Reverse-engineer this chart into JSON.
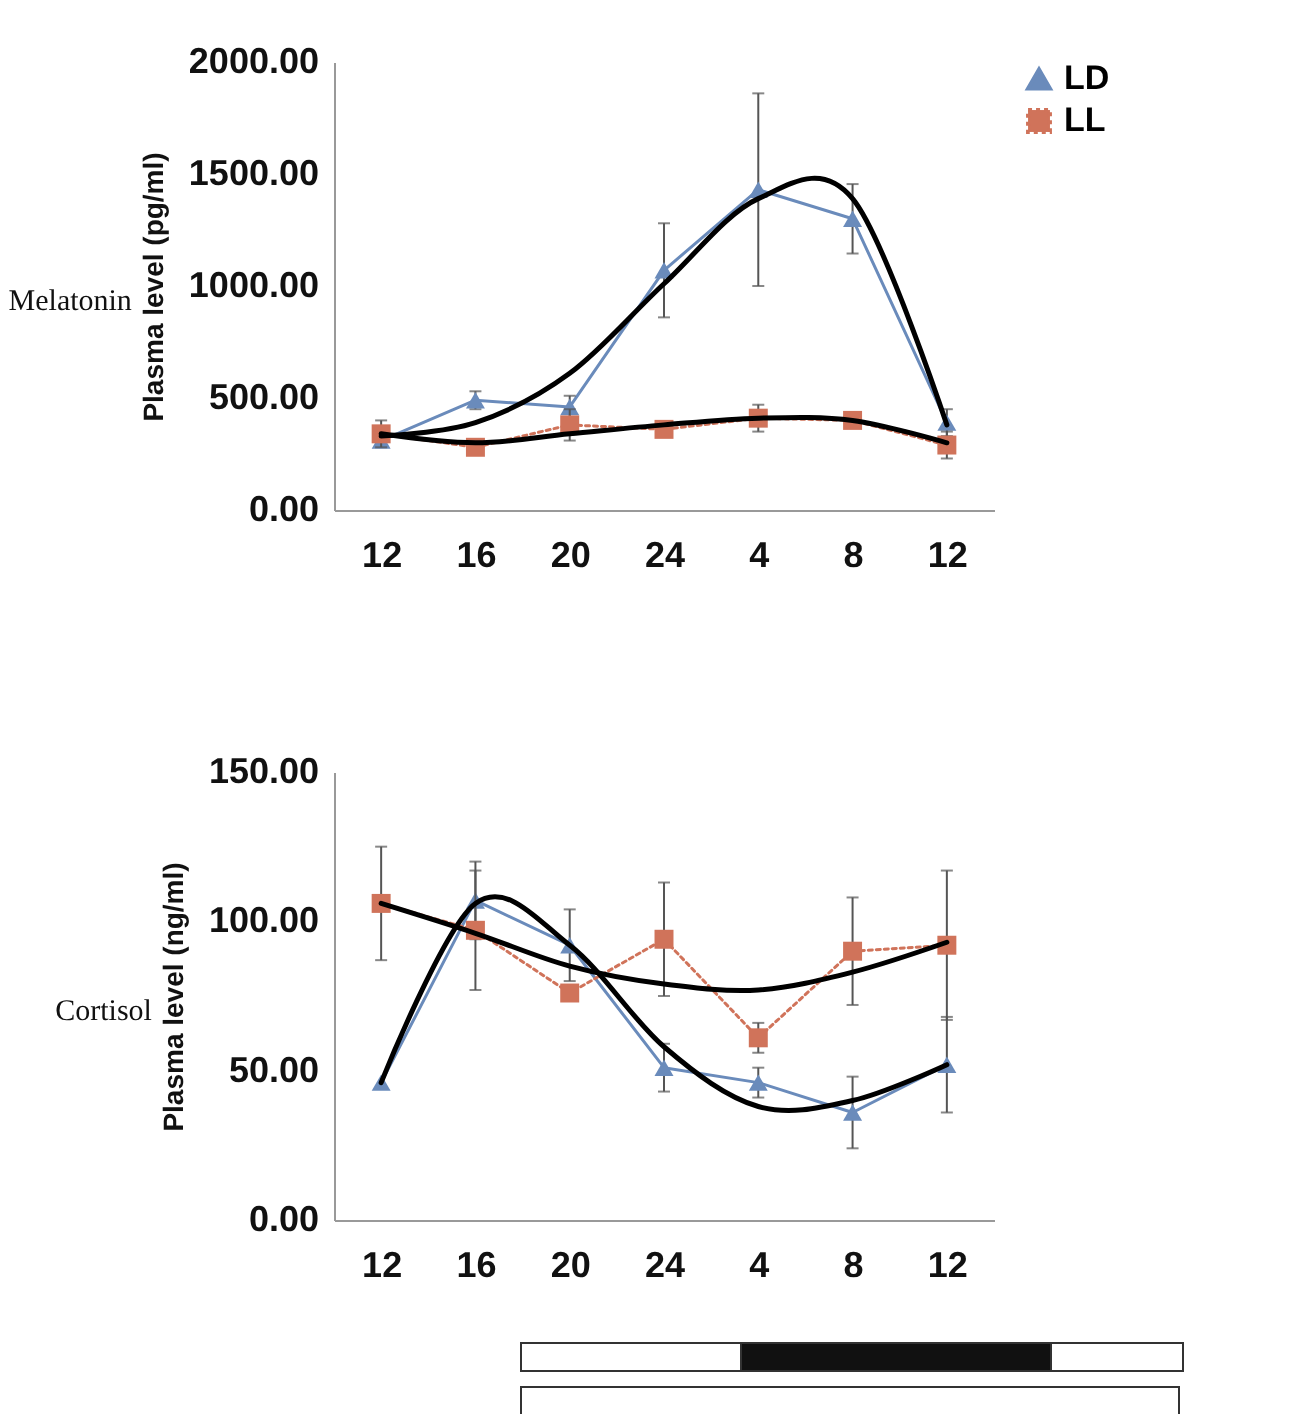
{
  "chart_data": [
    {
      "type": "line",
      "title": "Melatonin",
      "ylabel": "Plasma level  (pg/ml)",
      "categories": [
        "12",
        "16",
        "20",
        "24",
        "4",
        "8",
        "12"
      ],
      "ylim": [
        0,
        2000
      ],
      "yticks": [
        {
          "value": 0,
          "label": "0.00"
        },
        {
          "value": 500,
          "label": "500.00"
        },
        {
          "value": 1000,
          "label": "1000.00"
        },
        {
          "value": 1500,
          "label": "1500.00"
        },
        {
          "value": 2000,
          "label": "2000.00"
        }
      ],
      "grid": false,
      "legend": "top right",
      "series": [
        {
          "name": "LD",
          "color": "#6a8bbb",
          "marker": "triangle",
          "line_style": "solid",
          "values": [
            310,
            490,
            460,
            1070,
            1430,
            1300,
            390
          ],
          "errors": [
            20,
            40,
            50,
            210,
            430,
            155,
            60
          ]
        },
        {
          "name": "LL",
          "color": "#d0735a",
          "marker": "square",
          "line_style": "dotted",
          "values": [
            340,
            280,
            380,
            360,
            410,
            400,
            290
          ],
          "errors": [
            60,
            20,
            70,
            20,
            60,
            20,
            60
          ]
        },
        {
          "color": "#000000",
          "marker": "none",
          "line_style": "solid",
          "values": [
            330,
            390,
            610,
            1010,
            1390,
            1390,
            380
          ]
        },
        {
          "color": "#000000",
          "marker": "none",
          "line_style": "solid",
          "values": [
            340,
            300,
            340,
            380,
            410,
            400,
            300
          ]
        }
      ]
    },
    {
      "type": "line",
      "title": "Cortisol",
      "ylabel": "Plasma level  (ng/ml)",
      "categories": [
        "12",
        "16",
        "20",
        "24",
        "4",
        "8",
        "12"
      ],
      "ylim": [
        0,
        150
      ],
      "yticks": [
        {
          "value": 0,
          "label": "0.00"
        },
        {
          "value": 50,
          "label": "50.00"
        },
        {
          "value": 100,
          "label": "100.00"
        },
        {
          "value": 150,
          "label": "150.00"
        }
      ],
      "grid": false,
      "legend": "top right",
      "series": [
        {
          "name": "LD",
          "color": "#6a8bbb",
          "marker": "triangle",
          "line_style": "solid",
          "values": [
            46,
            107,
            92,
            51,
            46,
            36,
            52
          ],
          "errors": [
            null,
            13,
            12,
            8,
            5,
            12,
            16
          ]
        },
        {
          "name": "LL",
          "color": "#d0735a",
          "marker": "square",
          "line_style": "dotted",
          "values": [
            106,
            97,
            76,
            94,
            61,
            90,
            92
          ],
          "errors": [
            19,
            20,
            null,
            19,
            5,
            18,
            25
          ]
        },
        {
          "color": "#000000",
          "marker": "none",
          "line_style": "solid",
          "values": [
            46,
            106,
            92,
            58,
            38,
            40,
            52
          ]
        },
        {
          "color": "#000000",
          "marker": "none",
          "line_style": "solid",
          "values": [
            106,
            96,
            85,
            79,
            77,
            83,
            93
          ]
        }
      ]
    }
  ]
}
